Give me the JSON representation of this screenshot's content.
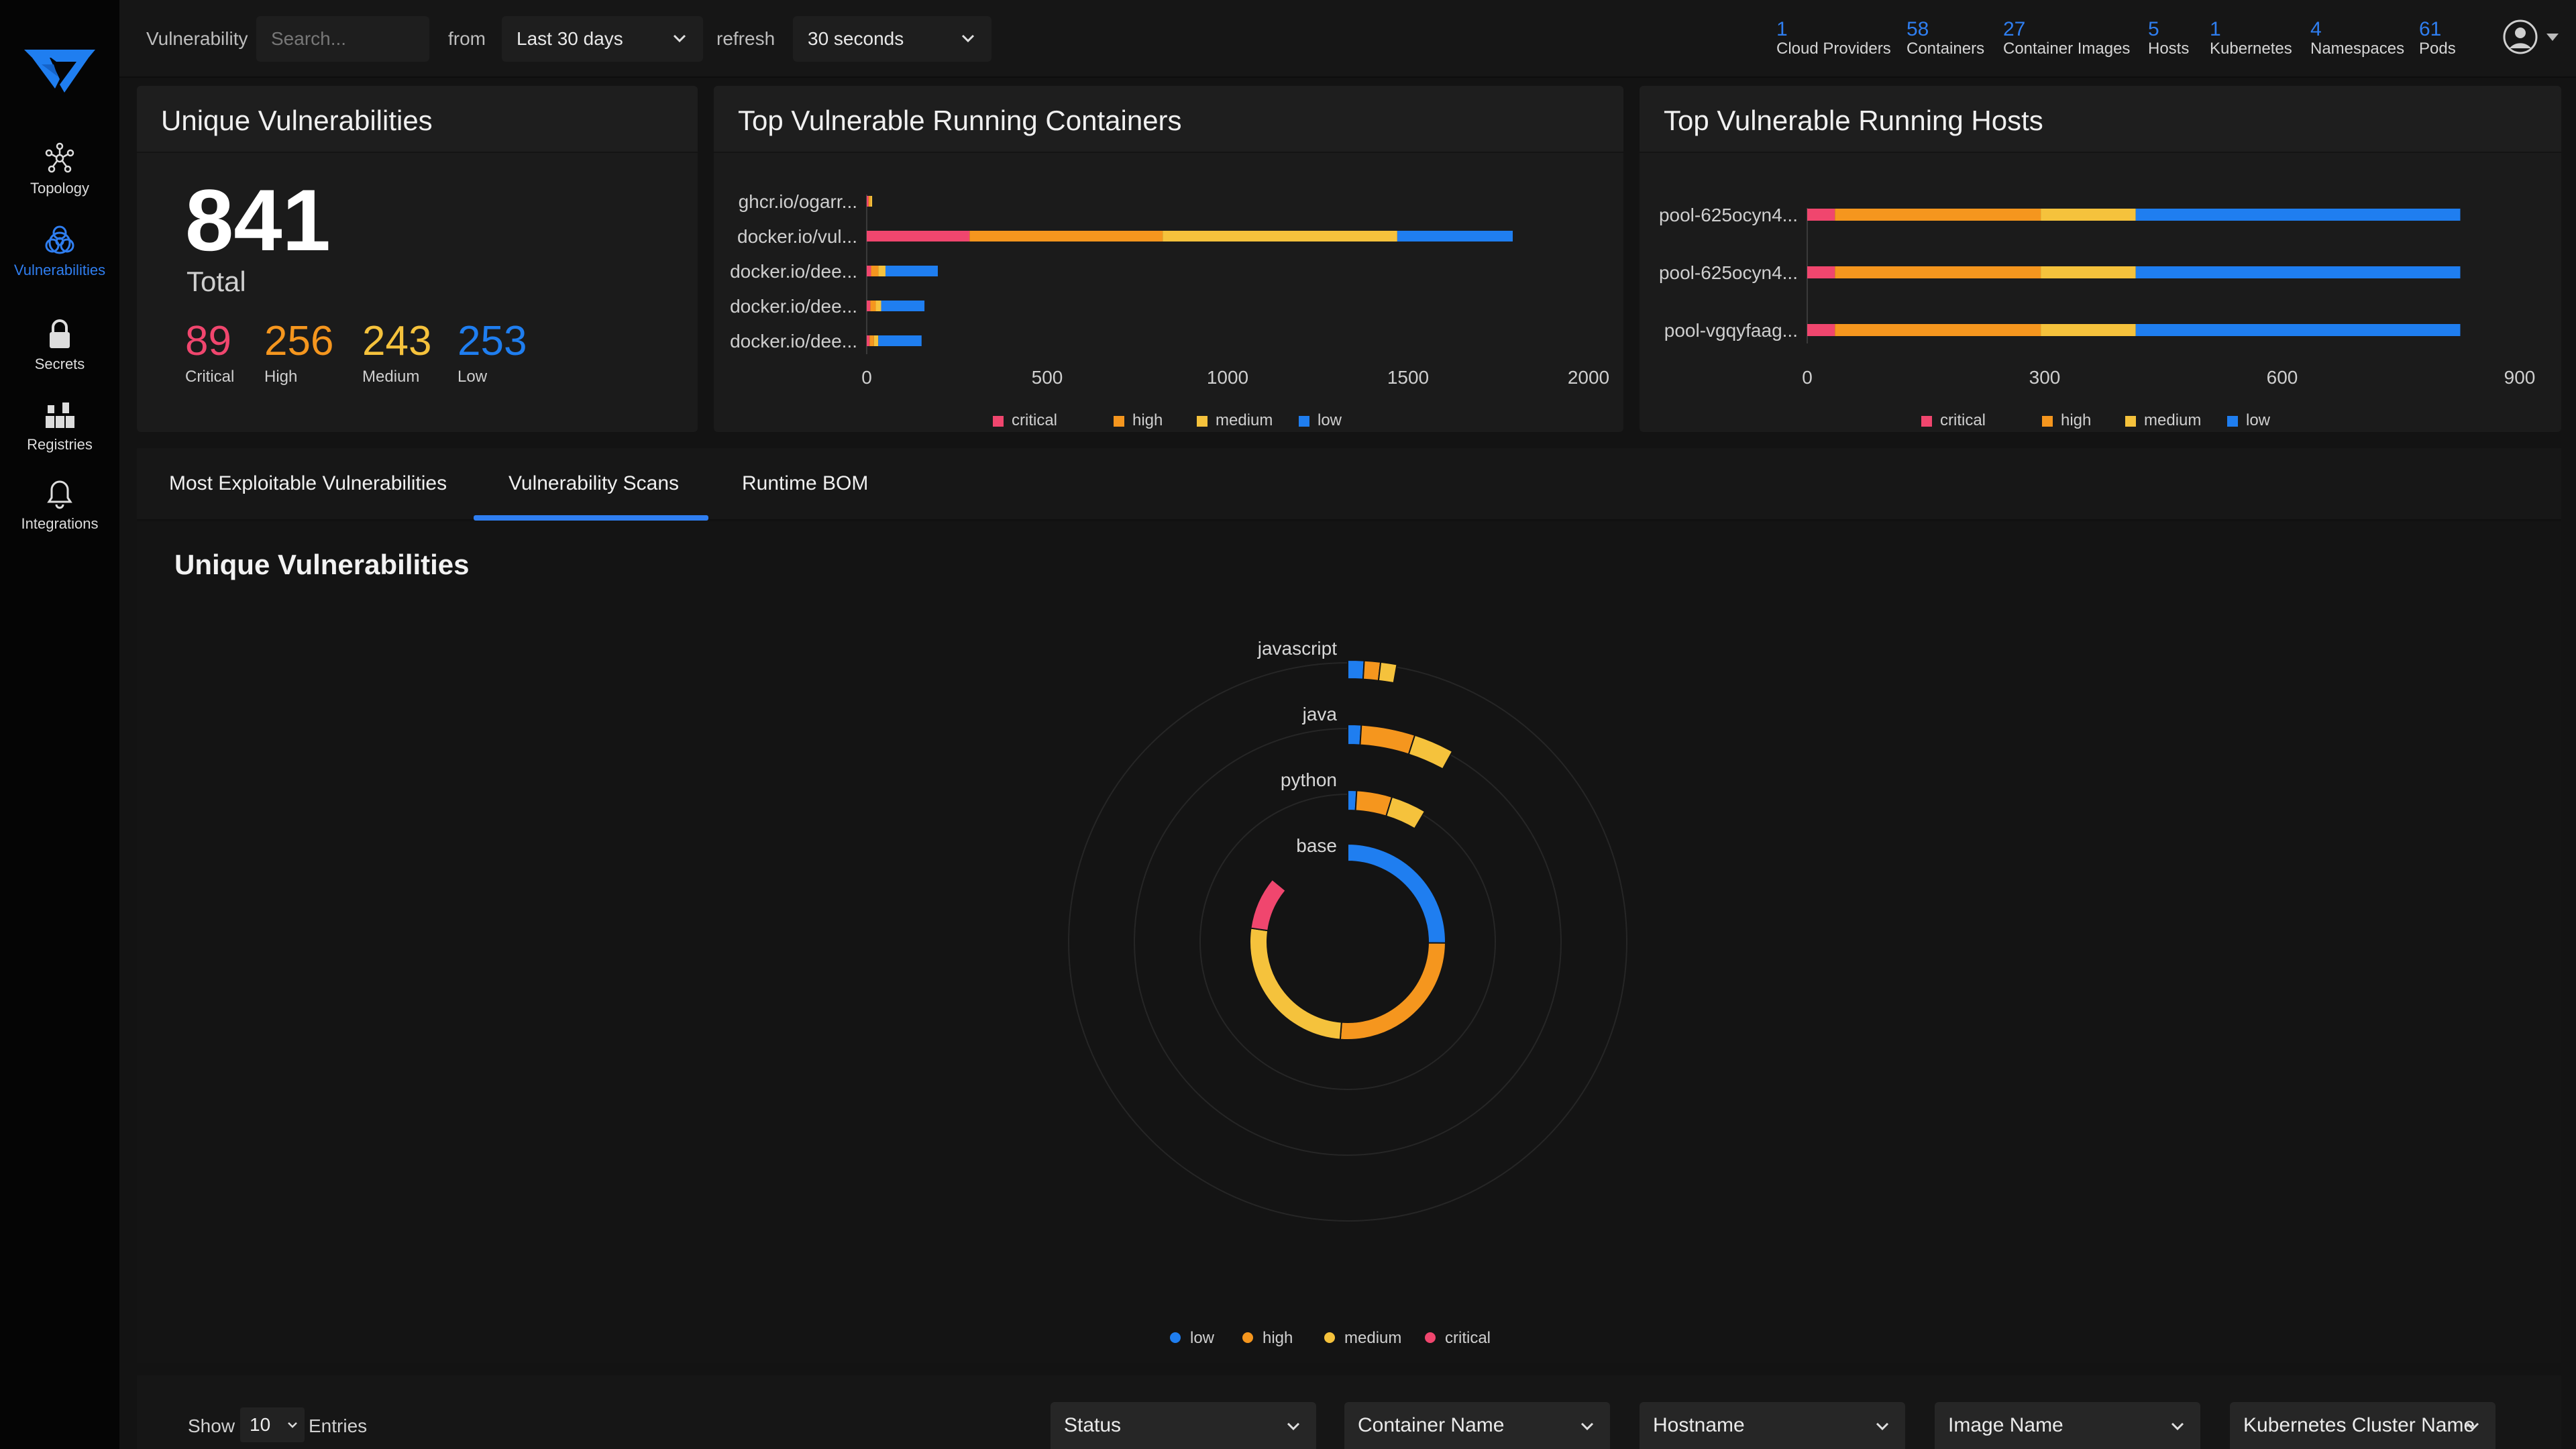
{
  "sidebar": {
    "items": [
      {
        "label": "Topology",
        "icon": "topology-icon"
      },
      {
        "label": "Vulnerabilities",
        "icon": "biohazard-icon",
        "active": true
      },
      {
        "label": "Secrets",
        "icon": "lock-icon"
      },
      {
        "label": "Registries",
        "icon": "registries-icon"
      },
      {
        "label": "Integrations",
        "icon": "bell-icon"
      }
    ]
  },
  "topbar": {
    "search_label": "Vulnerability",
    "search_placeholder": "Search...",
    "from_label": "from",
    "from_value": "Last 30 days",
    "refresh_label": "refresh",
    "refresh_value": "30 seconds",
    "stats": [
      {
        "num": "1",
        "label": "Cloud Providers"
      },
      {
        "num": "58",
        "label": "Containers"
      },
      {
        "num": "27",
        "label": "Container Images"
      },
      {
        "num": "5",
        "label": "Hosts"
      },
      {
        "num": "1",
        "label": "Kubernetes"
      },
      {
        "num": "4",
        "label": "Namespaces"
      },
      {
        "num": "61",
        "label": "Pods"
      }
    ]
  },
  "unique_card": {
    "title": "Unique Vulnerabilities",
    "total": "841",
    "total_label": "Total",
    "severities": [
      {
        "num": "89",
        "label": "Critical",
        "color": "#f0466e"
      },
      {
        "num": "256",
        "label": "High",
        "color": "#f5961e"
      },
      {
        "num": "243",
        "label": "Medium",
        "color": "#f5c23c"
      },
      {
        "num": "253",
        "label": "Low",
        "color": "#1f7ef0"
      }
    ]
  },
  "colors": {
    "critical": "#f0466e",
    "high": "#f5961e",
    "medium": "#f5c23c",
    "low": "#1f7ef0"
  },
  "containers_card": {
    "title": "Top Vulnerable Running Containers",
    "chart_data": {
      "type": "bar",
      "orientation": "horizontal",
      "stacked": true,
      "categories": [
        "ghcr.io/ogarr...",
        "docker.io/vul...",
        "docker.io/dee...",
        "docker.io/dee...",
        "docker.io/dee..."
      ],
      "series": [
        {
          "name": "critical",
          "values": [
            5,
            285,
            12,
            10,
            8
          ]
        },
        {
          "name": "high",
          "values": [
            5,
            535,
            20,
            15,
            12
          ]
        },
        {
          "name": "medium",
          "values": [
            5,
            650,
            20,
            15,
            12
          ]
        },
        {
          "name": "low",
          "values": [
            0,
            320,
            145,
            120,
            120
          ]
        }
      ],
      "xticks": [
        0,
        500,
        1000,
        1500,
        2000
      ],
      "xlim": [
        0,
        2000
      ],
      "legend": "bottom"
    }
  },
  "hosts_card": {
    "title": "Top Vulnerable Running Hosts",
    "chart_data": {
      "type": "bar",
      "orientation": "horizontal",
      "stacked": true,
      "categories": [
        "pool-625ocyn4...",
        "pool-625ocyn4...",
        "pool-vgqyfaag..."
      ],
      "series": [
        {
          "name": "critical",
          "values": [
            35,
            35,
            35
          ]
        },
        {
          "name": "high",
          "values": [
            260,
            260,
            260
          ]
        },
        {
          "name": "medium",
          "values": [
            120,
            120,
            120
          ]
        },
        {
          "name": "low",
          "values": [
            410,
            410,
            410
          ]
        }
      ],
      "xticks": [
        0,
        300,
        600,
        900
      ],
      "xlim": [
        0,
        900
      ],
      "legend": "bottom"
    }
  },
  "tabs": {
    "items": [
      "Most Exploitable Vulnerabilities",
      "Vulnerability Scans",
      "Runtime BOM"
    ],
    "active": 1
  },
  "sunburst": {
    "title": "Unique Vulnerabilities",
    "chart_data": {
      "type": "sunburst",
      "rings": [
        {
          "label": "base",
          "segments": [
            {
              "severity": "low",
              "value": 92
            },
            {
              "severity": "high",
              "value": 95
            },
            {
              "severity": "medium",
              "value": 95
            },
            {
              "severity": "critical",
              "value": 32
            }
          ]
        },
        {
          "label": "python",
          "segments": [
            {
              "severity": "low",
              "value": 1
            },
            {
              "severity": "high",
              "value": 4
            },
            {
              "severity": "medium",
              "value": 4
            },
            {
              "severity": "critical",
              "value": 0
            }
          ]
        },
        {
          "label": "java",
          "segments": [
            {
              "severity": "low",
              "value": 1
            },
            {
              "severity": "high",
              "value": 4
            },
            {
              "severity": "medium",
              "value": 3
            },
            {
              "severity": "critical",
              "value": 0
            }
          ]
        },
        {
          "label": "javascript",
          "segments": [
            {
              "severity": "low",
              "value": 1
            },
            {
              "severity": "high",
              "value": 1
            },
            {
              "severity": "medium",
              "value": 1
            },
            {
              "severity": "critical",
              "value": 0
            }
          ]
        }
      ],
      "legend": [
        "low",
        "high",
        "medium",
        "critical"
      ]
    }
  },
  "table_controls": {
    "show_label": "Show",
    "entries_value": "10",
    "entries_label": "Entries",
    "filters": [
      "Status",
      "Container Name",
      "Hostname",
      "Image Name",
      "Kubernetes Cluster Name"
    ]
  }
}
